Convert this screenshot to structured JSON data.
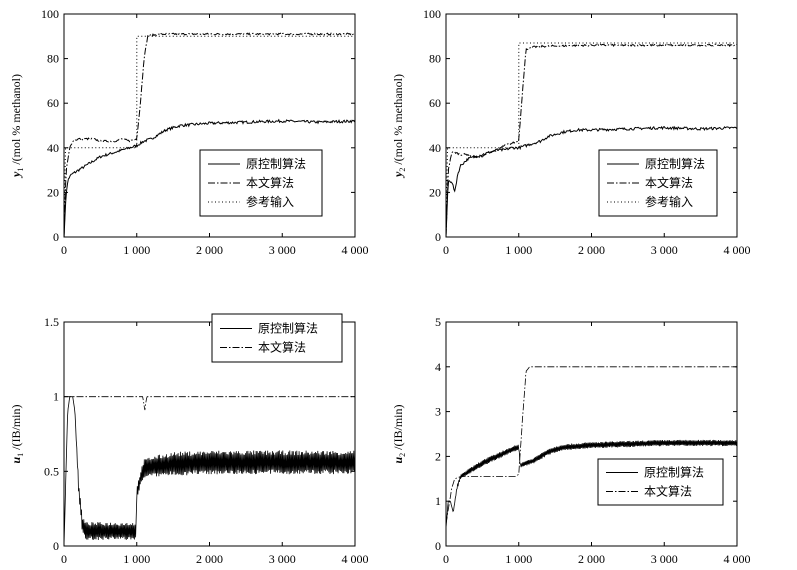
{
  "chart_data": [
    {
      "id": "y1",
      "type": "line",
      "ylabel_symbol": "y",
      "ylabel_sub": "1",
      "ylabel_rest": " /(mol % methanol)",
      "xlim": [
        0,
        4000
      ],
      "ylim": [
        0,
        100
      ],
      "xticks": [
        0,
        1000,
        2000,
        3000,
        4000
      ],
      "xtick_labels": [
        "0",
        "1 000",
        "2 000",
        "3 000",
        "4 000"
      ],
      "yticks": [
        0,
        20,
        40,
        60,
        80,
        100
      ],
      "ytick_labels": [
        "0",
        "20",
        "40",
        "60",
        "80",
        "100"
      ],
      "legend_position": "bottom-right",
      "series": [
        {
          "name": "原控制算法",
          "style": "solid",
          "x": [
            0,
            30,
            60,
            100,
            150,
            200,
            300,
            400,
            500,
            600,
            700,
            800,
            900,
            1000,
            1100,
            1200,
            1300,
            1400,
            1500,
            1600,
            1800,
            2000,
            2500,
            3000,
            3500,
            4000
          ],
          "y": [
            0,
            20,
            26,
            28,
            29,
            30,
            32,
            34,
            36,
            37,
            38,
            39,
            40,
            41,
            43,
            44,
            46,
            48,
            49,
            50,
            50.5,
            51,
            51.5,
            52,
            51.5,
            52
          ],
          "noise": 0.6
        },
        {
          "name": "本文算法",
          "style": "dashdot",
          "x": [
            0,
            30,
            80,
            120,
            200,
            300,
            400,
            500,
            600,
            700,
            800,
            900,
            1000,
            1050,
            1100,
            1150,
            1200,
            1400,
            2000,
            3000,
            4000
          ],
          "y": [
            0,
            30,
            40,
            43,
            44,
            44,
            44,
            43,
            43,
            43,
            44,
            43,
            44,
            60,
            80,
            90,
            90.5,
            91,
            91,
            91,
            91
          ],
          "noise": 0.4
        },
        {
          "name": "参考输入",
          "style": "dotted",
          "x": [
            0,
            20,
            100,
            1000,
            1000,
            4000
          ],
          "y": [
            0,
            40,
            40,
            40,
            90,
            90
          ],
          "noise": 0
        }
      ]
    },
    {
      "id": "y2",
      "type": "line",
      "ylabel_symbol": "y",
      "ylabel_sub": "2",
      "ylabel_rest": " /(mol % methanol)",
      "xlim": [
        0,
        4000
      ],
      "ylim": [
        0,
        100
      ],
      "xticks": [
        0,
        1000,
        2000,
        3000,
        4000
      ],
      "xtick_labels": [
        "0",
        "1 000",
        "2 000",
        "3 000",
        "4 000"
      ],
      "yticks": [
        0,
        20,
        40,
        60,
        80,
        100
      ],
      "ytick_labels": [
        "0",
        "20",
        "40",
        "60",
        "80",
        "100"
      ],
      "legend_position": "bottom-right",
      "series": [
        {
          "name": "原控制算法",
          "style": "solid",
          "x": [
            0,
            30,
            80,
            120,
            160,
            200,
            300,
            400,
            500,
            600,
            700,
            800,
            900,
            1000,
            1100,
            1200,
            1300,
            1400,
            1600,
            1800,
            2000,
            2500,
            3000,
            3500,
            4000
          ],
          "y": [
            0,
            25,
            25,
            20,
            28,
            32,
            35,
            36,
            37,
            38,
            39,
            39,
            40,
            40,
            41,
            42,
            43,
            45,
            47,
            48,
            48,
            48.5,
            49,
            48.5,
            49
          ],
          "noise": 0.6
        },
        {
          "name": "本文算法",
          "style": "dashdot",
          "x": [
            0,
            30,
            80,
            120,
            200,
            300,
            400,
            500,
            600,
            700,
            800,
            900,
            1000,
            1050,
            1100,
            1150,
            1300,
            2000,
            3000,
            4000
          ],
          "y": [
            0,
            30,
            38,
            38,
            37,
            37,
            36,
            36,
            38,
            39,
            41,
            42,
            43,
            65,
            84,
            85,
            85.5,
            86,
            86,
            86
          ],
          "noise": 0.4
        },
        {
          "name": "参考输入",
          "style": "dotted",
          "x": [
            0,
            20,
            100,
            1000,
            1000,
            4000
          ],
          "y": [
            0,
            40,
            40,
            40,
            87,
            87
          ],
          "noise": 0
        }
      ]
    },
    {
      "id": "u1",
      "type": "line",
      "ylabel_symbol": "u",
      "ylabel_sub": "1",
      "ylabel_rest": " /(IB/min)",
      "xlim": [
        0,
        4000
      ],
      "ylim": [
        0,
        1.5
      ],
      "xticks": [
        0,
        1000,
        2000,
        3000,
        4000
      ],
      "xtick_labels": [
        "0",
        "1 000",
        "2 000",
        "3 000",
        "4 000"
      ],
      "yticks": [
        0,
        0.5,
        1,
        1.5
      ],
      "ytick_labels": [
        "0",
        "0.5",
        "1",
        "1.5"
      ],
      "legend_position": "top-right",
      "series": [
        {
          "name": "原控制算法",
          "style": "solid",
          "x": [
            0,
            50,
            80,
            120,
            150,
            200,
            250,
            300,
            500,
            700,
            900,
            990,
            1000,
            1050,
            1100,
            1200,
            1500,
            2000,
            3000,
            4000
          ],
          "y": [
            0,
            0.9,
            1,
            1,
            0.9,
            0.4,
            0.15,
            0.1,
            0.1,
            0.1,
            0.1,
            0.1,
            0.35,
            0.45,
            0.52,
            0.53,
            0.55,
            0.56,
            0.56,
            0.56
          ],
          "osc": [
            0,
            0,
            0,
            0,
            0,
            0.04,
            0.05,
            0.06,
            0.06,
            0.06,
            0.06,
            0.06,
            0.04,
            0.05,
            0.06,
            0.07,
            0.08,
            0.08,
            0.08,
            0.08
          ]
        },
        {
          "name": "本文算法",
          "style": "dashdot",
          "x": [
            0,
            40,
            80,
            1080,
            1100,
            1110,
            1120,
            1140,
            4000
          ],
          "y": [
            1,
            1,
            1,
            1,
            0.95,
            0.9,
            0.95,
            1,
            1
          ],
          "osc": [
            0,
            0,
            0,
            0,
            0,
            0,
            0,
            0,
            0
          ]
        }
      ]
    },
    {
      "id": "u2",
      "type": "line",
      "ylabel_symbol": "u",
      "ylabel_sub": "2",
      "ylabel_rest": " /(IB/min)",
      "xlim": [
        0,
        4000
      ],
      "ylim": [
        0,
        5
      ],
      "xticks": [
        0,
        1000,
        2000,
        3000,
        4000
      ],
      "xtick_labels": [
        "0",
        "1 000",
        "2 000",
        "3 000",
        "4 000"
      ],
      "yticks": [
        0,
        1,
        2,
        3,
        4,
        5
      ],
      "ytick_labels": [
        "0",
        "1",
        "2",
        "3",
        "4",
        "5"
      ],
      "legend_position": "bottom-right",
      "series": [
        {
          "name": "原控制算法",
          "style": "solid",
          "x": [
            0,
            30,
            60,
            100,
            150,
            200,
            300,
            500,
            700,
            900,
            1000,
            1020,
            1100,
            1200,
            1300,
            1400,
            1600,
            2000,
            3000,
            4000
          ],
          "y": [
            0.4,
            1.0,
            1.0,
            0.75,
            1.3,
            1.55,
            1.65,
            1.85,
            2.0,
            2.15,
            2.2,
            1.8,
            1.85,
            1.9,
            2.0,
            2.1,
            2.2,
            2.25,
            2.3,
            2.3
          ],
          "osc": [
            0,
            0,
            0,
            0,
            0.03,
            0.05,
            0.06,
            0.07,
            0.07,
            0.07,
            0.07,
            0.05,
            0.06,
            0.06,
            0.07,
            0.07,
            0.07,
            0.07,
            0.07,
            0.07
          ]
        },
        {
          "name": "本文算法",
          "style": "dashdot",
          "x": [
            0,
            40,
            80,
            120,
            200,
            400,
            600,
            800,
            950,
            1000,
            1050,
            1100,
            1150,
            4000
          ],
          "y": [
            0.5,
            0.9,
            1.3,
            1.5,
            1.55,
            1.55,
            1.55,
            1.55,
            1.55,
            1.6,
            2.8,
            3.9,
            4.0,
            4.0
          ],
          "osc": [
            0,
            0,
            0,
            0,
            0,
            0,
            0,
            0,
            0,
            0,
            0,
            0,
            0,
            0
          ]
        }
      ]
    }
  ]
}
